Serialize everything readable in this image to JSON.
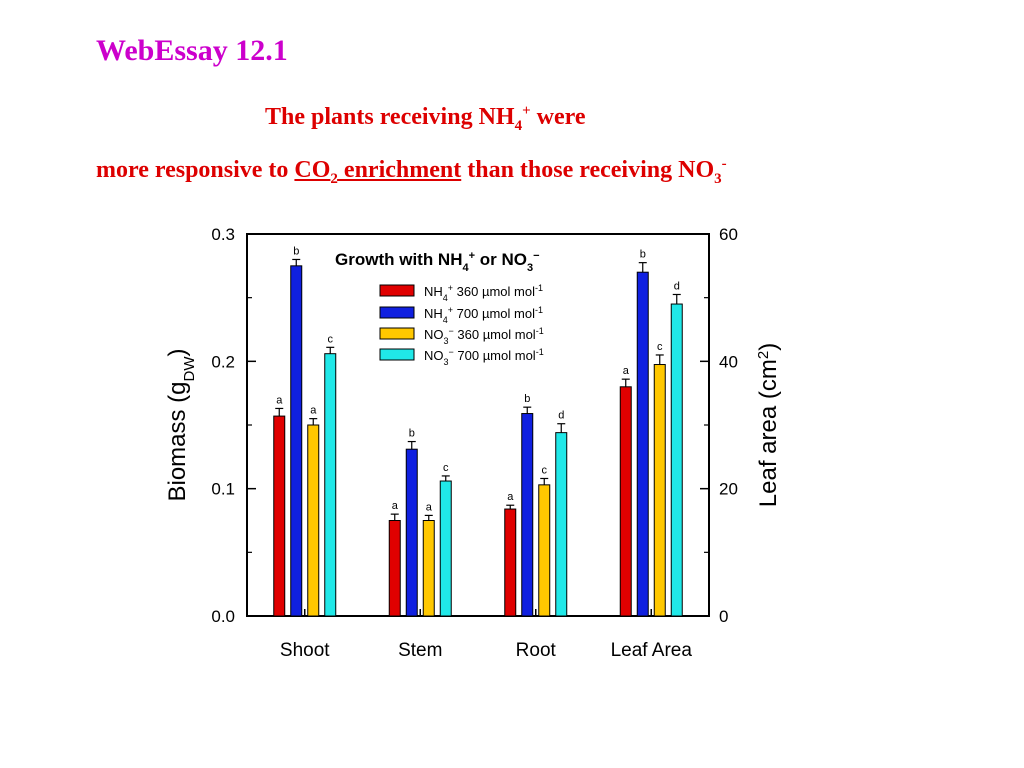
{
  "slide": {
    "title": "WebEssay 12.1",
    "line1": {
      "pre": "The plants receiving NH",
      "sub": "4",
      "sup": "+",
      "post": " were"
    },
    "line2": {
      "pre": "more responsive to ",
      "co2_main": "CO",
      "co2_sub": "2",
      "co2_rest": " enrichment",
      "mid": " than those receiving NO",
      "no3_sub": "3",
      "no3_sup": "-"
    }
  },
  "chart_data": {
    "type": "bar",
    "title": "Growth with NH4+ or NO3−",
    "title_parts": {
      "a": "Growth with NH",
      "a_sub": "4",
      "a_sup": "+",
      "b": " or NO",
      "b_sub": "3",
      "b_sup": "−"
    },
    "categories": [
      "Shoot",
      "Stem",
      "Root",
      "Leaf Area"
    ],
    "ylabel_left": {
      "main": "Biomass (g",
      "sub": "DW",
      "close": ")"
    },
    "ylabel_right": {
      "main": "Leaf area (cm",
      "sup": "2",
      "close": ")"
    },
    "ylim_left": [
      0,
      0.3
    ],
    "ylim_right": [
      0,
      60
    ],
    "yticks_left": [
      "0.0",
      "0.1",
      "0.2",
      "0.3"
    ],
    "yticks_right": [
      "0",
      "20",
      "40",
      "60"
    ],
    "leaf_area_uses_right_axis": true,
    "legend_position": "top-right",
    "series": [
      {
        "name": "NH4+ 360 µmol mol-1",
        "legend": {
          "ion": "NH",
          "ion_sub": "4",
          "ion_sup": "+",
          "conc": " 360 µmol mol",
          "unit_sup": "-1"
        },
        "color": "#e00000",
        "values": [
          0.157,
          0.075,
          0.084,
          36
        ],
        "errors": [
          0.006,
          0.005,
          0.003,
          1.2
        ],
        "letters": [
          "a",
          "a",
          "a",
          "a"
        ]
      },
      {
        "name": "NH4+ 700 µmol mol-1",
        "legend": {
          "ion": "NH",
          "ion_sub": "4",
          "ion_sup": "+",
          "conc": " 700 µmol mol",
          "unit_sup": "-1"
        },
        "color": "#1020e0",
        "values": [
          0.275,
          0.131,
          0.159,
          54
        ],
        "errors": [
          0.005,
          0.006,
          0.005,
          1.5
        ],
        "letters": [
          "b",
          "b",
          "b",
          "b"
        ]
      },
      {
        "name": "NO3− 360 µmol mol-1",
        "legend": {
          "ion": "NO",
          "ion_sub": "3",
          "ion_sup": "−",
          "conc": " 360 µmol mol",
          "unit_sup": "-1"
        },
        "color": "#ffc800",
        "values": [
          0.15,
          0.075,
          0.103,
          39.5
        ],
        "errors": [
          0.005,
          0.004,
          0.005,
          1.5
        ],
        "letters": [
          "a",
          "a",
          "c",
          "c"
        ]
      },
      {
        "name": "NO3− 700 µmol mol-1",
        "legend": {
          "ion": "NO",
          "ion_sub": "3",
          "ion_sup": "−",
          "conc": " 700 µmol mol",
          "unit_sup": "-1"
        },
        "color": "#20e8e8",
        "values": [
          0.206,
          0.106,
          0.144,
          49
        ],
        "errors": [
          0.005,
          0.004,
          0.007,
          1.5
        ],
        "letters": [
          "c",
          "c",
          "d",
          "d"
        ]
      }
    ]
  }
}
